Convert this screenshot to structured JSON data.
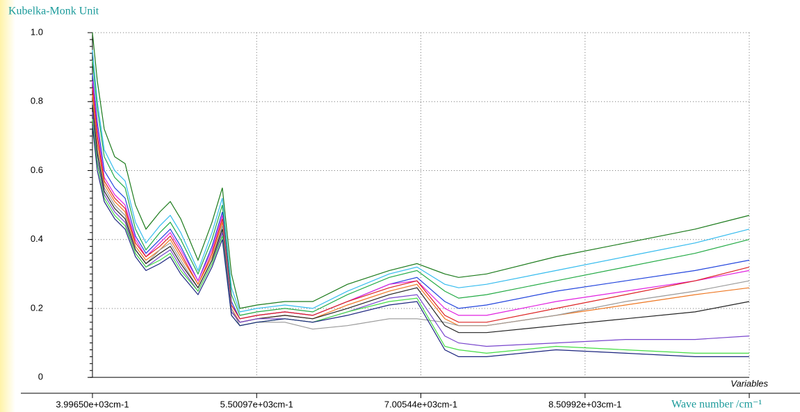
{
  "chart_data": {
    "type": "line",
    "y_label": "Kubelka-Monk Unit",
    "x_label": "Wave number /cm⁻¹",
    "x_axis_caption": "Variables",
    "xlim": [
      3996.5,
      10014.39
    ],
    "xticks": [
      {
        "value": 3996.5,
        "label": "3.99650e+03cm-1"
      },
      {
        "value": 5500.97,
        "label": "5.50097e+03cm-1"
      },
      {
        "value": 7005.44,
        "label": "7.00544e+03cm-1"
      },
      {
        "value": 8509.92,
        "label": "8.50992e+03cm-1"
      }
    ],
    "ylim": [
      -0.046,
      1
    ],
    "yticks": [
      0,
      0.2,
      0.4,
      0.6,
      0.8,
      {
        "value": 1,
        "label": "1.0"
      }
    ],
    "grid": true,
    "x": [
      3996.5,
      4041,
      4105,
      4200,
      4296,
      4391,
      4487,
      4614,
      4710,
      4805,
      4964,
      5092,
      5187,
      5270,
      5347,
      5506,
      5760,
      6015,
      6333,
      6716,
      6970,
      7225,
      7352,
      7607,
      8244,
      8881,
      9518,
      10014
    ],
    "series": [
      {
        "color": "#1a7a1a",
        "values": [
          1.0,
          0.86,
          0.72,
          0.64,
          0.62,
          0.5,
          0.43,
          0.48,
          0.51,
          0.46,
          0.34,
          0.45,
          0.55,
          0.3,
          0.2,
          0.21,
          0.22,
          0.22,
          0.27,
          0.31,
          0.33,
          0.3,
          0.29,
          0.3,
          0.35,
          0.39,
          0.43,
          0.47
        ]
      },
      {
        "color": "#33bbee",
        "values": [
          0.95,
          0.8,
          0.66,
          0.6,
          0.57,
          0.45,
          0.39,
          0.44,
          0.47,
          0.42,
          0.31,
          0.42,
          0.52,
          0.26,
          0.19,
          0.2,
          0.21,
          0.2,
          0.25,
          0.3,
          0.32,
          0.27,
          0.26,
          0.27,
          0.31,
          0.35,
          0.39,
          0.43
        ]
      },
      {
        "color": "#22aa44",
        "values": [
          0.92,
          0.78,
          0.64,
          0.58,
          0.55,
          0.43,
          0.37,
          0.42,
          0.45,
          0.4,
          0.3,
          0.4,
          0.5,
          0.24,
          0.18,
          0.19,
          0.2,
          0.19,
          0.24,
          0.29,
          0.31,
          0.25,
          0.23,
          0.24,
          0.28,
          0.32,
          0.36,
          0.4
        ]
      },
      {
        "color": "#2244dd",
        "values": [
          0.88,
          0.74,
          0.6,
          0.55,
          0.52,
          0.41,
          0.36,
          0.4,
          0.43,
          0.38,
          0.28,
          0.38,
          0.48,
          0.22,
          0.17,
          0.18,
          0.19,
          0.18,
          0.22,
          0.27,
          0.29,
          0.22,
          0.2,
          0.21,
          0.25,
          0.28,
          0.31,
          0.34
        ]
      },
      {
        "color": "#e020e0",
        "values": [
          0.86,
          0.72,
          0.58,
          0.53,
          0.5,
          0.4,
          0.35,
          0.39,
          0.42,
          0.37,
          0.28,
          0.37,
          0.47,
          0.21,
          0.17,
          0.18,
          0.19,
          0.18,
          0.22,
          0.27,
          0.28,
          0.2,
          0.18,
          0.18,
          0.22,
          0.25,
          0.28,
          0.31
        ]
      },
      {
        "color": "#dd2222",
        "values": [
          0.84,
          0.7,
          0.57,
          0.52,
          0.49,
          0.39,
          0.35,
          0.38,
          0.41,
          0.36,
          0.27,
          0.36,
          0.46,
          0.21,
          0.17,
          0.18,
          0.19,
          0.18,
          0.22,
          0.26,
          0.28,
          0.18,
          0.16,
          0.16,
          0.2,
          0.24,
          0.28,
          0.32
        ]
      },
      {
        "color": "#ee7722",
        "values": [
          0.82,
          0.68,
          0.56,
          0.51,
          0.48,
          0.38,
          0.34,
          0.37,
          0.4,
          0.35,
          0.27,
          0.35,
          0.45,
          0.2,
          0.16,
          0.17,
          0.18,
          0.17,
          0.21,
          0.25,
          0.27,
          0.17,
          0.15,
          0.15,
          0.18,
          0.21,
          0.24,
          0.26
        ]
      },
      {
        "color": "#999999",
        "values": [
          0.8,
          0.66,
          0.55,
          0.5,
          0.47,
          0.37,
          0.33,
          0.37,
          0.39,
          0.34,
          0.26,
          0.34,
          0.44,
          0.2,
          0.15,
          0.16,
          0.16,
          0.14,
          0.15,
          0.17,
          0.17,
          0.16,
          0.15,
          0.15,
          0.18,
          0.22,
          0.25,
          0.28
        ]
      },
      {
        "color": "#222222",
        "values": [
          0.79,
          0.65,
          0.54,
          0.49,
          0.46,
          0.37,
          0.33,
          0.36,
          0.38,
          0.33,
          0.26,
          0.34,
          0.43,
          0.19,
          0.16,
          0.17,
          0.18,
          0.17,
          0.2,
          0.24,
          0.26,
          0.15,
          0.13,
          0.13,
          0.15,
          0.17,
          0.19,
          0.22
        ]
      },
      {
        "color": "#7744cc",
        "values": [
          0.77,
          0.63,
          0.53,
          0.48,
          0.45,
          0.36,
          0.32,
          0.35,
          0.37,
          0.32,
          0.25,
          0.33,
          0.42,
          0.19,
          0.16,
          0.17,
          0.17,
          0.16,
          0.19,
          0.23,
          0.24,
          0.12,
          0.1,
          0.09,
          0.1,
          0.11,
          0.11,
          0.12
        ]
      },
      {
        "color": "#44dd44",
        "values": [
          0.75,
          0.62,
          0.52,
          0.47,
          0.44,
          0.36,
          0.32,
          0.34,
          0.36,
          0.31,
          0.25,
          0.33,
          0.41,
          0.18,
          0.15,
          0.16,
          0.17,
          0.16,
          0.19,
          0.22,
          0.23,
          0.09,
          0.08,
          0.07,
          0.09,
          0.08,
          0.07,
          0.07
        ]
      },
      {
        "color": "#1a237e",
        "values": [
          0.73,
          0.6,
          0.51,
          0.46,
          0.43,
          0.35,
          0.31,
          0.33,
          0.35,
          0.3,
          0.24,
          0.32,
          0.4,
          0.18,
          0.15,
          0.16,
          0.17,
          0.16,
          0.18,
          0.21,
          0.22,
          0.08,
          0.06,
          0.06,
          0.08,
          0.07,
          0.06,
          0.06
        ]
      }
    ]
  }
}
